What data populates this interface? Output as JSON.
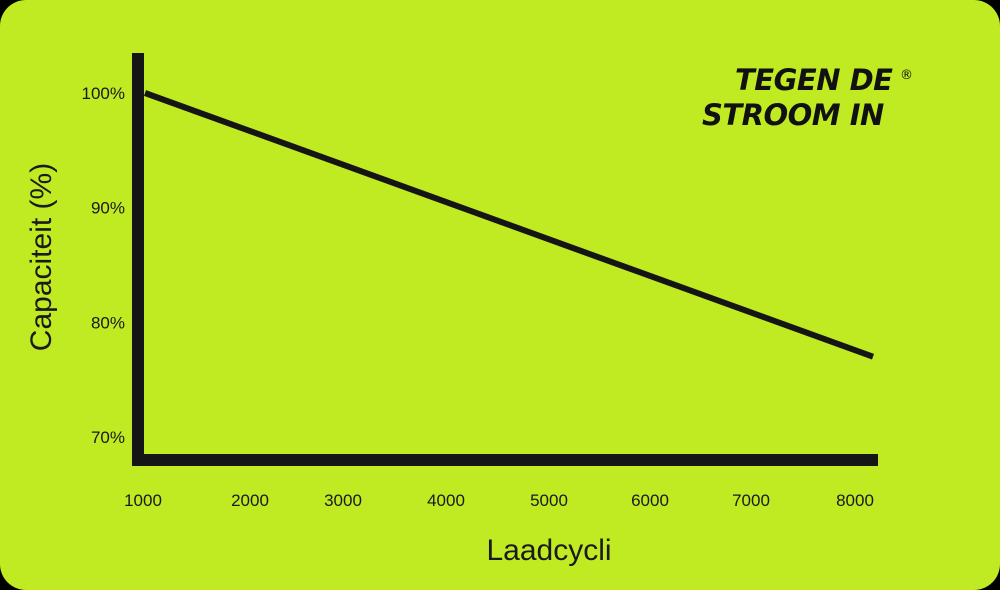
{
  "colors": {
    "background": "#c0ea22",
    "ink": "#151515",
    "frame": "#000000"
  },
  "brand": {
    "line1": "TEGEN DE",
    "line2": "STROOM IN",
    "registered": "®"
  },
  "chart_data": {
    "type": "line",
    "title": "",
    "xlabel": "Laadcycli",
    "ylabel": "Capaciteit (%)",
    "x_ticks": [
      "1000",
      "2000",
      "3000",
      "4000",
      "5000",
      "6000",
      "7000",
      "8000"
    ],
    "y_ticks": [
      "100%",
      "90%",
      "80%",
      "70%"
    ],
    "y_tick_values": [
      100,
      90,
      80,
      70
    ],
    "xlim": [
      1000,
      8000
    ],
    "ylim": [
      70,
      100
    ],
    "grid": false,
    "legend": "none",
    "series": [
      {
        "x": [
          1000,
          8000
        ],
        "y": [
          100,
          77
        ]
      }
    ]
  }
}
